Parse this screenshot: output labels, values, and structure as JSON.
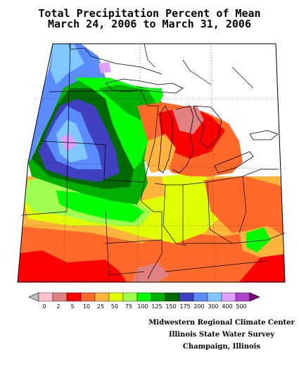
{
  "title": {
    "line1": "Total Precipitation Percent of Mean",
    "line2": "March 24, 2006 to March 31, 2006"
  },
  "legend": {
    "labels": [
      "0",
      "2",
      "5",
      "10",
      "25",
      "50",
      "75",
      "100",
      "125",
      "150",
      "175",
      "200",
      "300",
      "400",
      "500"
    ],
    "colors": [
      "#c0c0c0",
      "#ffc0cb",
      "#e08080",
      "#ff0000",
      "#ff6a2a",
      "#ffb43c",
      "#e0ff00",
      "#a0ff50",
      "#00ff00",
      "#00b000",
      "#006a00",
      "#4040c0",
      "#5a8cff",
      "#80c8ff",
      "#e0a0ff",
      "#b040d0",
      "#800080"
    ]
  },
  "credits": {
    "line1": "Midwestern Regional Climate Center",
    "line2": "Illinois State Water Survey",
    "line3": "Champaign, Illinois"
  }
}
